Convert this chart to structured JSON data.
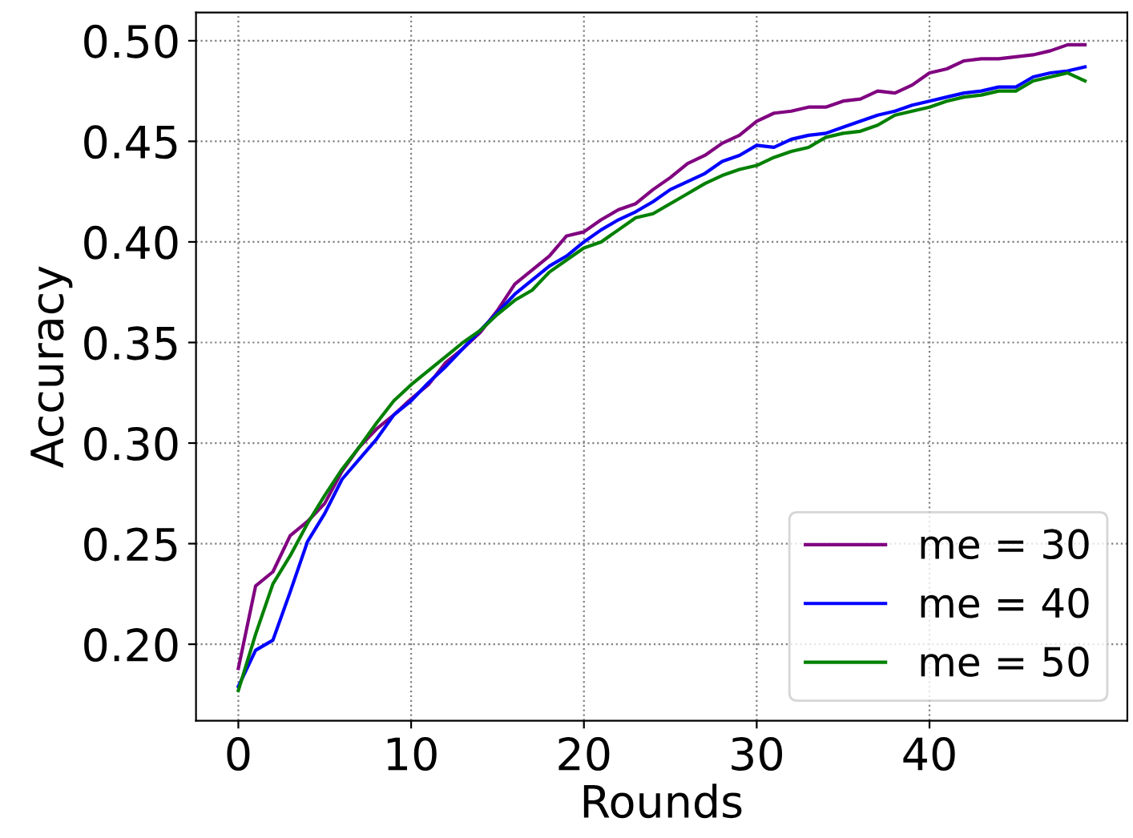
{
  "chart_data": {
    "type": "line",
    "xlabel": "Rounds",
    "ylabel": "Accuracy",
    "x": [
      0,
      1,
      2,
      3,
      4,
      5,
      6,
      7,
      8,
      9,
      10,
      11,
      12,
      13,
      14,
      15,
      16,
      17,
      18,
      19,
      20,
      21,
      22,
      23,
      24,
      25,
      26,
      27,
      28,
      29,
      30,
      31,
      32,
      33,
      34,
      35,
      36,
      37,
      38,
      39,
      40,
      41,
      42,
      43,
      44,
      45,
      46,
      47,
      48,
      49
    ],
    "series": [
      {
        "name": "me = 30",
        "color": "#800080",
        "values": [
          0.188,
          0.229,
          0.236,
          0.254,
          0.261,
          0.27,
          0.286,
          0.298,
          0.307,
          0.314,
          0.322,
          0.329,
          0.34,
          0.347,
          0.355,
          0.366,
          0.379,
          0.386,
          0.393,
          0.403,
          0.405,
          0.411,
          0.416,
          0.419,
          0.426,
          0.432,
          0.439,
          0.443,
          0.449,
          0.453,
          0.46,
          0.464,
          0.465,
          0.467,
          0.467,
          0.47,
          0.471,
          0.475,
          0.474,
          0.478,
          0.484,
          0.486,
          0.49,
          0.491,
          0.491,
          0.492,
          0.493,
          0.495,
          0.498,
          0.498
        ]
      },
      {
        "name": "me = 40",
        "color": "#0000ff",
        "values": [
          0.179,
          0.197,
          0.202,
          0.226,
          0.251,
          0.265,
          0.282,
          0.292,
          0.302,
          0.314,
          0.321,
          0.33,
          0.338,
          0.347,
          0.356,
          0.365,
          0.374,
          0.381,
          0.388,
          0.393,
          0.4,
          0.406,
          0.411,
          0.415,
          0.42,
          0.426,
          0.43,
          0.434,
          0.44,
          0.443,
          0.448,
          0.447,
          0.451,
          0.453,
          0.454,
          0.457,
          0.46,
          0.463,
          0.465,
          0.468,
          0.47,
          0.472,
          0.474,
          0.475,
          0.477,
          0.477,
          0.482,
          0.484,
          0.485,
          0.487
        ]
      },
      {
        "name": "me = 50",
        "color": "#008000",
        "values": [
          0.177,
          0.205,
          0.23,
          0.244,
          0.26,
          0.274,
          0.287,
          0.298,
          0.31,
          0.321,
          0.329,
          0.336,
          0.343,
          0.35,
          0.356,
          0.364,
          0.371,
          0.376,
          0.385,
          0.391,
          0.397,
          0.4,
          0.406,
          0.412,
          0.414,
          0.419,
          0.424,
          0.429,
          0.433,
          0.436,
          0.438,
          0.442,
          0.445,
          0.447,
          0.452,
          0.454,
          0.455,
          0.458,
          0.463,
          0.465,
          0.467,
          0.47,
          0.472,
          0.473,
          0.475,
          0.475,
          0.48,
          0.482,
          0.484,
          0.48
        ]
      }
    ],
    "xlim": [
      -2.45,
      51.45
    ],
    "ylim": [
      0.162,
      0.514
    ],
    "xticks": [
      0,
      10,
      20,
      30,
      40
    ],
    "yticks": [
      {
        "value": 0.2,
        "label": "0.20"
      },
      {
        "value": 0.25,
        "label": "0.25"
      },
      {
        "value": 0.3,
        "label": "0.30"
      },
      {
        "value": 0.35,
        "label": "0.35"
      },
      {
        "value": 0.4,
        "label": "0.40"
      },
      {
        "value": 0.45,
        "label": "0.45"
      },
      {
        "value": 0.5,
        "label": "0.50"
      }
    ],
    "grid": true,
    "legend": "lower right",
    "line_style": "solid",
    "marker": "none"
  }
}
